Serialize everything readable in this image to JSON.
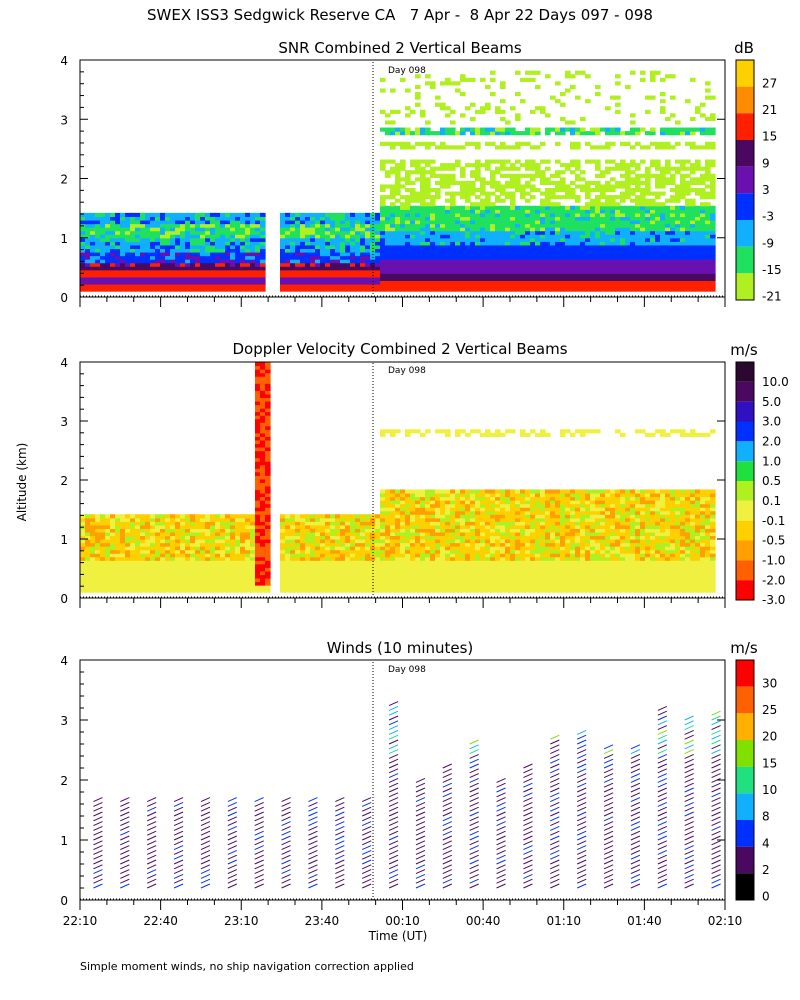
{
  "header": {
    "title": "SWEX ISS3 Sedgwick Reserve CA   7 Apr -  8 Apr 22 Days 097 - 098"
  },
  "shared": {
    "ylabel": "Altitude (km)",
    "xlabel": "Time (UT)",
    "x_ticks": [
      "22:10",
      "22:40",
      "23:10",
      "23:40",
      "00:10",
      "00:40",
      "01:10",
      "01:40",
      "02:10"
    ],
    "y_ticks": [
      "0",
      "1",
      "2",
      "3",
      "4"
    ],
    "day_marker": "Day 098",
    "footnote": "Simple moment winds, no ship navigation correction applied"
  },
  "panels": {
    "snr": {
      "title": "SNR Combined 2 Vertical Beams",
      "unit": "dB",
      "colorbar_labels": [
        "27",
        "21",
        "15",
        "9",
        "3",
        "-3",
        "-9",
        "-15",
        "-21"
      ],
      "colors": [
        "#ffd000",
        "#ff8c00",
        "#ff2000",
        "#4a0860",
        "#6a10b0",
        "#0030ff",
        "#10b0ff",
        "#20e060",
        "#b0f020"
      ]
    },
    "doppler": {
      "title": "Doppler Velocity Combined 2 Vertical Beams",
      "unit": "m/s",
      "colorbar_labels": [
        "10.0",
        "5.0",
        "3.0",
        "2.0",
        "1.0",
        "0.5",
        "0.1",
        "-0.1",
        "-0.5",
        "-1.0",
        "-2.0",
        "-3.0"
      ],
      "colors": [
        "#2a0830",
        "#4a0860",
        "#3010c0",
        "#0030ff",
        "#10b0ff",
        "#20e040",
        "#b0f020",
        "#f0f040",
        "#ffd000",
        "#ffa000",
        "#ff6000",
        "#ff0000"
      ]
    },
    "winds": {
      "title": "Winds (10 minutes)",
      "unit": "m/s",
      "colorbar_labels": [
        "30",
        "25",
        "20",
        "15",
        "10",
        "8",
        "4",
        "2",
        "0"
      ],
      "colors": [
        "#ff0000",
        "#ff6000",
        "#ffb000",
        "#80e000",
        "#20e080",
        "#10b0ff",
        "#0030ff",
        "#4a0860",
        "#000000"
      ]
    }
  },
  "chart_data": [
    {
      "type": "heatmap",
      "title": "SNR Combined 2 Vertical Beams",
      "xlabel": "",
      "ylabel": "Altitude (km)",
      "x_ticks": [
        "22:10",
        "22:40",
        "23:10",
        "23:40",
        "00:10",
        "00:40",
        "01:10",
        "01:40",
        "02:10"
      ],
      "ylim": [
        0,
        4
      ],
      "colorbar_unit": "dB",
      "colorbar_levels": [
        27,
        21,
        15,
        9,
        3,
        -3,
        -9,
        -15,
        -21
      ],
      "day_boundary": "00:00",
      "day_label": "Day 098",
      "approx_layers": [
        {
          "period": "22:10-00:00",
          "alt_km": [
            0.1,
            0.25
          ],
          "snr_db": 15
        },
        {
          "period": "22:10-00:00",
          "alt_km": [
            0.25,
            0.5
          ],
          "snr_db": 9
        },
        {
          "period": "22:10-00:00",
          "alt_km": [
            0.5,
            0.9
          ],
          "snr_db": -3
        },
        {
          "period": "22:10-00:00",
          "alt_km": [
            0.9,
            1.4
          ],
          "snr_db": -15
        },
        {
          "period": "00:00-02:10",
          "alt_km": [
            0.1,
            0.55
          ],
          "snr_db": 9
        },
        {
          "period": "00:00-02:10",
          "alt_km": [
            0.55,
            1.0
          ],
          "snr_db": -3
        },
        {
          "period": "00:00-02:10",
          "alt_km": [
            1.0,
            2.3
          ],
          "snr_db": -21
        },
        {
          "period": "00:00-02:10",
          "alt_km": [
            2.7,
            2.9
          ],
          "snr_db": -15
        }
      ]
    },
    {
      "type": "heatmap",
      "title": "Doppler Velocity Combined 2 Vertical Beams",
      "xlabel": "",
      "ylabel": "Altitude (km)",
      "x_ticks": [
        "22:10",
        "22:40",
        "23:10",
        "23:40",
        "00:10",
        "00:40",
        "01:10",
        "01:40",
        "02:10"
      ],
      "ylim": [
        0,
        4
      ],
      "colorbar_unit": "m/s",
      "colorbar_levels": [
        10.0,
        5.0,
        3.0,
        2.0,
        1.0,
        0.5,
        0.1,
        -0.1,
        -0.5,
        -1.0,
        -2.0,
        -3.0
      ],
      "approx_layers": [
        {
          "period": "22:10-02:10",
          "alt_km": [
            0.1,
            0.7
          ],
          "velocity_ms": -0.1
        },
        {
          "period": "22:10-00:00",
          "alt_km": [
            0.7,
            1.4
          ],
          "velocity_ms": -0.5
        },
        {
          "period": "00:00-02:10",
          "alt_km": [
            0.7,
            1.8
          ],
          "velocity_ms": -0.5
        }
      ]
    },
    {
      "type": "scatter",
      "title": "Winds (10 minutes)",
      "xlabel": "Time (UT)",
      "ylabel": "Altitude (km)",
      "x_ticks": [
        "22:10",
        "22:40",
        "23:10",
        "23:40",
        "00:10",
        "00:40",
        "01:10",
        "01:40",
        "02:10"
      ],
      "ylim": [
        0,
        4
      ],
      "colorbar_unit": "m/s",
      "colorbar_levels": [
        30,
        25,
        20,
        15,
        10,
        8,
        4,
        2,
        0
      ],
      "profile_interval_min": 10,
      "profiles_top_km_before_day098": 1.7,
      "profiles_top_km_after_day098": 3.5
    }
  ]
}
